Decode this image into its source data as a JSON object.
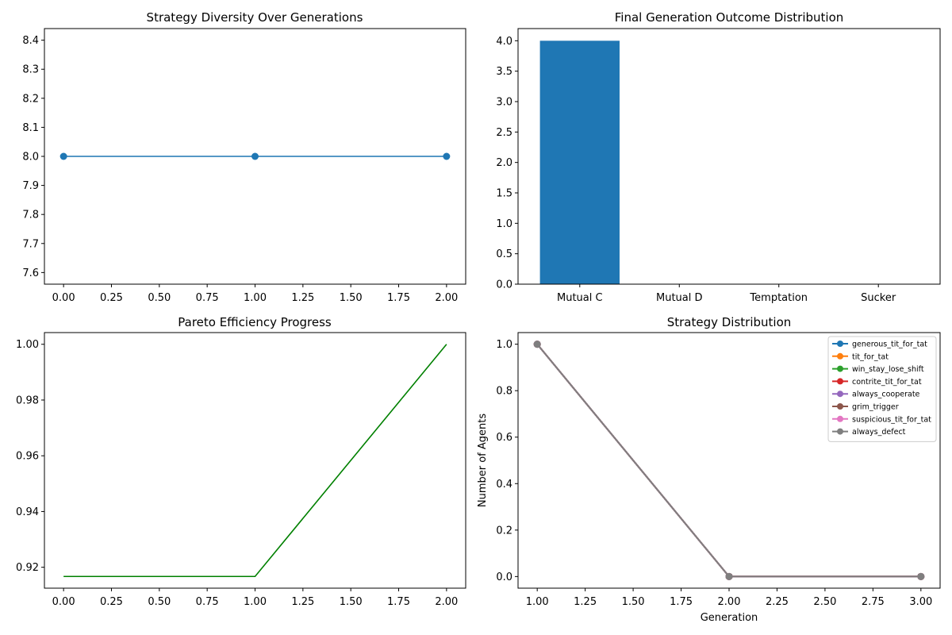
{
  "chart_data": [
    {
      "type": "line",
      "title": "Strategy Diversity Over Generations",
      "xlabel": "",
      "ylabel": "",
      "x": [
        0,
        1,
        2
      ],
      "series": [
        {
          "values": [
            8,
            8,
            8
          ],
          "color": "#1f77b4",
          "marker": "circle"
        }
      ],
      "xlim": [
        -0.1,
        2.1
      ],
      "ylim": [
        7.56,
        8.44
      ],
      "xticks": [
        0.0,
        0.25,
        0.5,
        0.75,
        1.0,
        1.25,
        1.5,
        1.75,
        2.0
      ],
      "xtick_labels": [
        "0.00",
        "0.25",
        "0.50",
        "0.75",
        "1.00",
        "1.25",
        "1.50",
        "1.75",
        "2.00"
      ],
      "yticks": [
        7.6,
        7.7,
        7.8,
        7.9,
        8.0,
        8.1,
        8.2,
        8.3,
        8.4
      ],
      "ytick_labels": [
        "7.6",
        "7.7",
        "7.8",
        "7.9",
        "8.0",
        "8.1",
        "8.2",
        "8.3",
        "8.4"
      ],
      "grid": false
    },
    {
      "type": "bar",
      "title": "Final Generation Outcome Distribution",
      "xlabel": "",
      "ylabel": "",
      "categories": [
        "Mutual C",
        "Mutual D",
        "Temptation",
        "Sucker"
      ],
      "values": [
        4,
        0,
        0,
        0
      ],
      "color": "#1f77b4",
      "ylim": [
        0,
        4.2
      ],
      "yticks": [
        0,
        0.5,
        1.0,
        1.5,
        2.0,
        2.5,
        3.0,
        3.5,
        4.0
      ],
      "ytick_labels": [
        "0.0",
        "0.5",
        "1.0",
        "1.5",
        "2.0",
        "2.5",
        "3.0",
        "3.5",
        "4.0"
      ],
      "grid": false
    },
    {
      "type": "line",
      "title": "Pareto Efficiency Progress",
      "xlabel": "",
      "ylabel": "",
      "x": [
        0,
        1,
        2
      ],
      "series": [
        {
          "values": [
            0.9167,
            0.9167,
            1.0
          ],
          "color": "#008000",
          "marker": "none"
        }
      ],
      "xlim": [
        -0.1,
        2.1
      ],
      "ylim": [
        0.9125,
        1.0042
      ],
      "xticks": [
        0.0,
        0.25,
        0.5,
        0.75,
        1.0,
        1.25,
        1.5,
        1.75,
        2.0
      ],
      "xtick_labels": [
        "0.00",
        "0.25",
        "0.50",
        "0.75",
        "1.00",
        "1.25",
        "1.50",
        "1.75",
        "2.00"
      ],
      "yticks": [
        0.92,
        0.94,
        0.96,
        0.98,
        1.0
      ],
      "ytick_labels": [
        "0.92",
        "0.94",
        "0.96",
        "0.98",
        "1.00"
      ],
      "grid": false
    },
    {
      "type": "line",
      "title": "Strategy Distribution",
      "xlabel": "Generation",
      "ylabel": "Number of Agents",
      "x": [
        1,
        2,
        3
      ],
      "series": [
        {
          "name": "generous_tit_for_tat",
          "values": [
            1,
            0,
            0
          ],
          "color": "#1f77b4"
        },
        {
          "name": "tit_for_tat",
          "values": [
            1,
            0,
            0
          ],
          "color": "#ff7f0e"
        },
        {
          "name": "win_stay_lose_shift",
          "values": [
            1,
            0,
            0
          ],
          "color": "#2ca02c"
        },
        {
          "name": "contrite_tit_for_tat",
          "values": [
            1,
            0,
            0
          ],
          "color": "#d62728"
        },
        {
          "name": "always_cooperate",
          "values": [
            1,
            0,
            0
          ],
          "color": "#9467bd"
        },
        {
          "name": "grim_trigger",
          "values": [
            1,
            0,
            0
          ],
          "color": "#8c564b"
        },
        {
          "name": "suspicious_tit_for_tat",
          "values": [
            1,
            0,
            0
          ],
          "color": "#e377c2"
        },
        {
          "name": "always_defect",
          "values": [
            1,
            0,
            0
          ],
          "color": "#7f7f7f"
        }
      ],
      "xlim": [
        0.9,
        3.1
      ],
      "ylim": [
        -0.05,
        1.05
      ],
      "xticks": [
        1.0,
        1.25,
        1.5,
        1.75,
        2.0,
        2.25,
        2.5,
        2.75,
        3.0
      ],
      "xtick_labels": [
        "1.00",
        "1.25",
        "1.50",
        "1.75",
        "2.00",
        "2.25",
        "2.50",
        "2.75",
        "3.00"
      ],
      "yticks": [
        0,
        0.2,
        0.4,
        0.6,
        0.8,
        1.0
      ],
      "ytick_labels": [
        "0.0",
        "0.2",
        "0.4",
        "0.6",
        "0.8",
        "1.0"
      ],
      "legend": "top-right",
      "grid": false
    }
  ]
}
